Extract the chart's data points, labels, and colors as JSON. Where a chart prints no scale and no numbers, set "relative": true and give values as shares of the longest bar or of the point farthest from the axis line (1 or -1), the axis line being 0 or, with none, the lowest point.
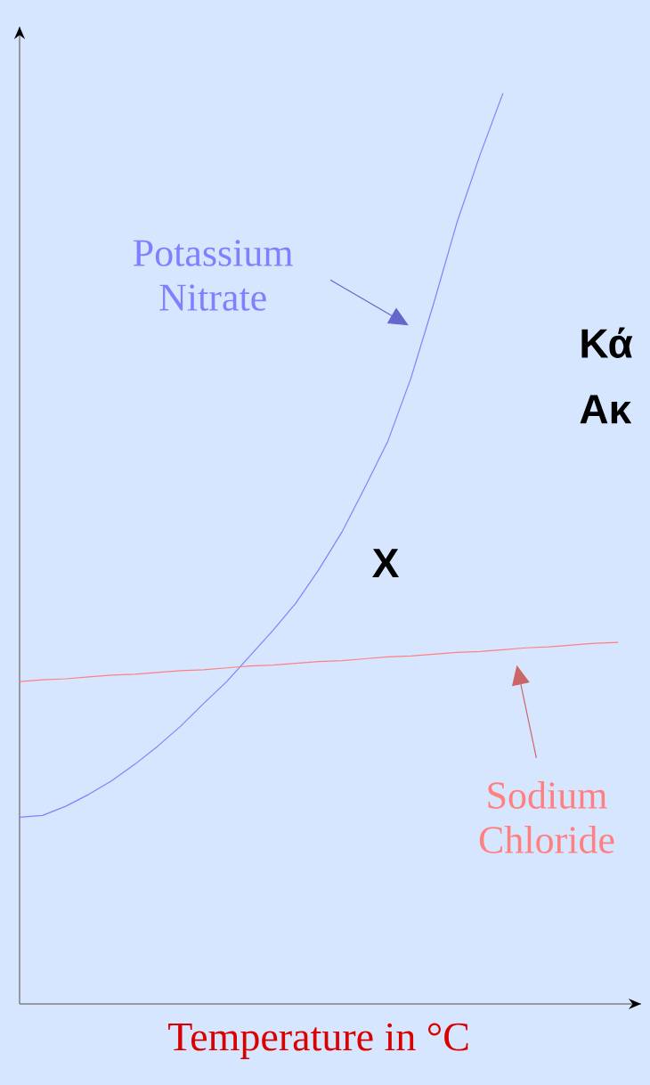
{
  "chart_data": {
    "type": "line",
    "relative": true,
    "xlabel": "Temperature in °C",
    "categories": [
      null,
      null,
      null,
      null,
      null,
      null,
      null,
      null,
      null,
      null,
      null,
      null,
      null,
      null,
      null,
      null,
      null,
      null,
      null,
      null,
      null,
      null,
      null,
      null,
      null,
      null,
      null
    ],
    "series": [
      {
        "name": "Potassium Nitrate",
        "color": "#8080ff",
        "values": [
          0.205,
          0.207,
          0.217,
          0.23,
          0.245,
          0.263,
          0.283,
          0.305,
          0.33,
          0.354,
          0.382,
          0.41,
          0.44,
          0.477,
          0.518,
          0.567,
          0.618,
          0.687,
          0.77,
          0.858,
          0.932,
          1.0,
          null,
          null,
          null,
          null,
          null
        ]
      },
      {
        "name": "Sodium Chloride",
        "color": "#ff8080",
        "values": [
          0.354,
          0.356,
          0.357,
          0.359,
          0.361,
          0.362,
          0.364,
          0.366,
          0.367,
          0.369,
          0.371,
          0.372,
          0.374,
          0.376,
          0.377,
          0.379,
          0.381,
          0.382,
          0.384,
          0.386,
          0.387,
          0.389,
          0.391,
          0.392,
          0.394,
          0.396,
          0.397
        ]
      }
    ],
    "annotations": [
      "X",
      "Κά",
      "Ακ"
    ]
  }
}
